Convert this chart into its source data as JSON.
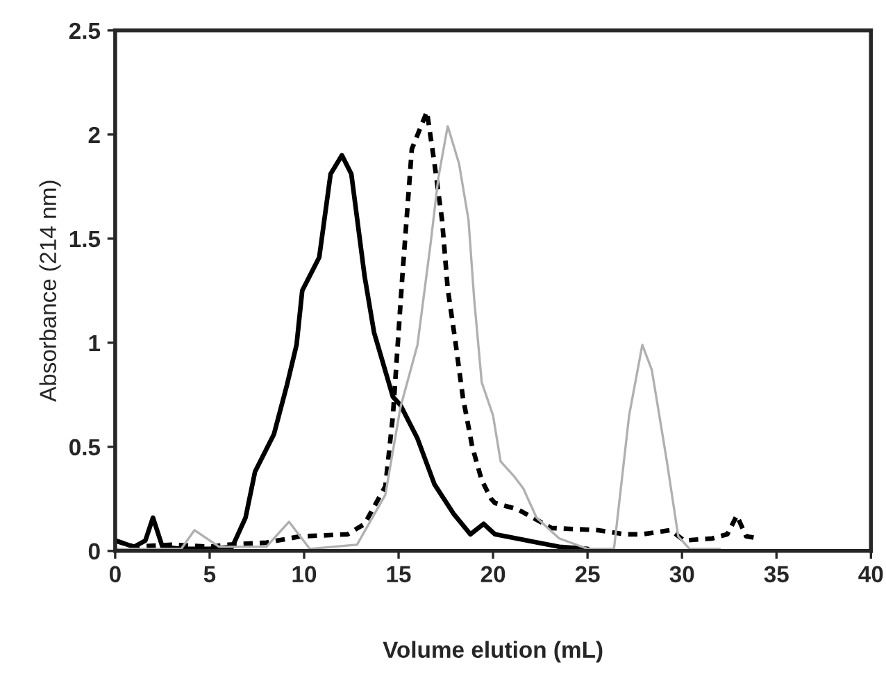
{
  "chart_data": {
    "type": "line",
    "xlabel": "Volume elution (mL)",
    "ylabel": "Absorbance (214 nm)",
    "xlim": [
      0,
      40
    ],
    "ylim": [
      0,
      2.5
    ],
    "xticks": [
      0,
      5,
      10,
      15,
      20,
      25,
      30,
      35,
      40
    ],
    "yticks": [
      0,
      0.5,
      1,
      1.5,
      2,
      2.5
    ],
    "grid": false,
    "legend": false,
    "series": [
      {
        "color": "#000000",
        "line_style": "solid",
        "x": [
          0,
          1,
          1.6,
          2.0,
          2.5,
          3.5,
          5,
          6.2,
          6.9,
          7.4,
          8.4,
          9.1,
          9.6,
          9.9,
          10.8,
          11.4,
          12.0,
          12.5,
          13.2,
          13.7,
          14.7,
          15.1,
          16.0,
          16.9,
          17.9,
          18.8,
          19.5,
          20.1,
          21.8,
          23.5,
          25
        ],
        "values": [
          0.05,
          0.02,
          0.05,
          0.16,
          0.02,
          0.01,
          0.01,
          0.02,
          0.16,
          0.38,
          0.56,
          0.8,
          0.99,
          1.25,
          1.41,
          1.81,
          1.9,
          1.81,
          1.32,
          1.05,
          0.74,
          0.7,
          0.54,
          0.32,
          0.18,
          0.08,
          0.13,
          0.08,
          0.05,
          0.02,
          0.01
        ]
      },
      {
        "color": "#000000",
        "line_style": "dashed",
        "x": [
          0,
          1,
          3,
          5,
          6,
          8,
          9.8,
          12.3,
          13.2,
          14.3,
          14.7,
          15.2,
          15.7,
          16.5,
          16.9,
          17.3,
          17.6,
          18.0,
          18.4,
          18.9,
          19.4,
          19.9,
          20.1,
          21.3,
          23.1,
          25.5,
          27.0,
          27.9,
          29.4,
          30.1,
          31.6,
          32.4,
          32.9,
          33.4,
          34.1
        ],
        "values": [
          0.05,
          0.02,
          0.03,
          0.02,
          0.03,
          0.04,
          0.07,
          0.08,
          0.13,
          0.31,
          0.65,
          1.32,
          1.93,
          2.11,
          1.86,
          1.59,
          1.26,
          1.01,
          0.74,
          0.5,
          0.34,
          0.25,
          0.23,
          0.2,
          0.11,
          0.1,
          0.08,
          0.08,
          0.1,
          0.05,
          0.06,
          0.08,
          0.17,
          0.07,
          0.06
        ]
      },
      {
        "color": "#b0b0b0",
        "line_style": "solid",
        "x": [
          0,
          3.5,
          4.2,
          5.5,
          8,
          9.2,
          10.3,
          12.8,
          14.3,
          15.1,
          16.0,
          16.7,
          17.1,
          17.6,
          18.2,
          18.7,
          19.0,
          19.4,
          20.0,
          20.4,
          21.1,
          21.6,
          22.3,
          23.5,
          25.0,
          26.4,
          27.2,
          27.9,
          28.4,
          29.2,
          29.8,
          30.4,
          32
        ],
        "values": [
          0.01,
          0.01,
          0.1,
          0.02,
          0.02,
          0.14,
          0.01,
          0.03,
          0.27,
          0.69,
          0.99,
          1.48,
          1.79,
          2.04,
          1.86,
          1.59,
          1.21,
          0.81,
          0.65,
          0.43,
          0.36,
          0.3,
          0.16,
          0.06,
          0.01,
          0.01,
          0.65,
          0.99,
          0.87,
          0.43,
          0.07,
          0.01,
          0.01
        ]
      }
    ]
  }
}
